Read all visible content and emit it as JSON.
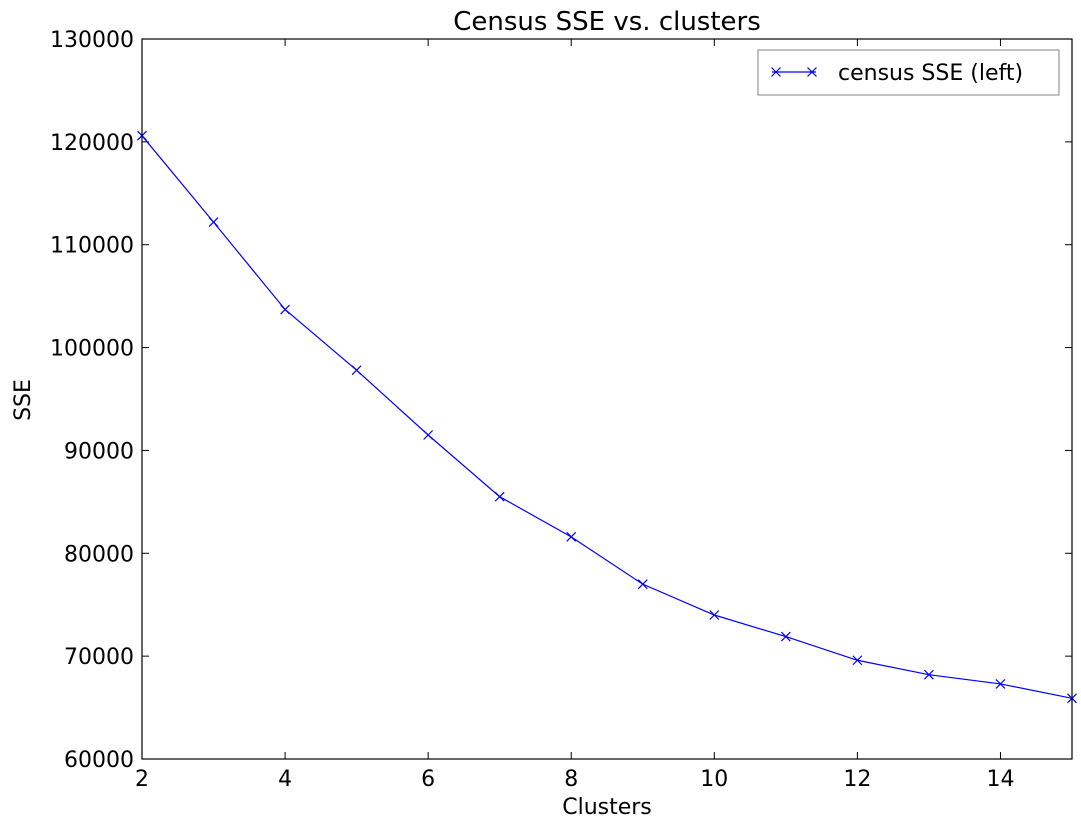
{
  "chart_data": {
    "type": "line",
    "title": "Census  SSE vs. clusters",
    "xlabel": "Clusters",
    "ylabel": "SSE",
    "xlim": [
      2,
      15
    ],
    "ylim": [
      60000,
      130000
    ],
    "x_ticks": [
      2,
      4,
      6,
      8,
      10,
      12,
      14
    ],
    "y_ticks": [
      60000,
      70000,
      80000,
      90000,
      100000,
      110000,
      120000,
      130000
    ],
    "grid": false,
    "legend_position": "top-right",
    "series": [
      {
        "name": "census SSE (left)",
        "color": "#0000ff",
        "marker": "x",
        "x": [
          2,
          3,
          4,
          5,
          6,
          7,
          8,
          9,
          10,
          11,
          12,
          13,
          14,
          15
        ],
        "y": [
          120600,
          112200,
          103700,
          97800,
          91500,
          85500,
          81600,
          77000,
          74000,
          71900,
          69600,
          68200,
          67300,
          65900
        ]
      }
    ]
  }
}
